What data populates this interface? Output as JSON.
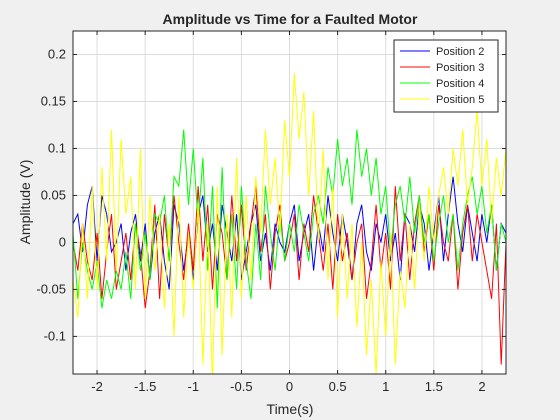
{
  "chart_data": {
    "type": "line",
    "title": "Amplitude vs Time for a Faulted Motor",
    "xlabel": "Time(s)",
    "ylabel": "Amplitude (V)",
    "xlim": [
      -2.25,
      2.25
    ],
    "ylim": [
      -0.14,
      0.225
    ],
    "xticks": [
      -2,
      -1.5,
      -1,
      -0.5,
      0,
      0.5,
      1,
      1.5,
      2
    ],
    "xtick_labels": [
      "-2",
      "-1.5",
      "-1",
      "-0.5",
      "0",
      "0.5",
      "1",
      "1.5",
      "2"
    ],
    "yticks": [
      -0.1,
      -0.05,
      0,
      0.05,
      0.1,
      0.15,
      0.2
    ],
    "ytick_labels": [
      "-0.1",
      "-0.05",
      "0",
      "0.05",
      "0.1",
      "0.15",
      "0.2"
    ],
    "grid": true,
    "legend_position": "top-right",
    "x": [
      -2.25,
      -2.2,
      -2.15,
      -2.1,
      -2.05,
      -2.0,
      -1.95,
      -1.9,
      -1.85,
      -1.8,
      -1.75,
      -1.7,
      -1.65,
      -1.6,
      -1.55,
      -1.5,
      -1.45,
      -1.4,
      -1.35,
      -1.3,
      -1.25,
      -1.2,
      -1.15,
      -1.1,
      -1.05,
      -1.0,
      -0.95,
      -0.9,
      -0.85,
      -0.8,
      -0.75,
      -0.7,
      -0.65,
      -0.6,
      -0.55,
      -0.5,
      -0.45,
      -0.4,
      -0.35,
      -0.3,
      -0.25,
      -0.2,
      -0.15,
      -0.1,
      -0.05,
      0.0,
      0.05,
      0.1,
      0.15,
      0.2,
      0.25,
      0.3,
      0.35,
      0.4,
      0.45,
      0.5,
      0.55,
      0.6,
      0.65,
      0.7,
      0.75,
      0.8,
      0.85,
      0.9,
      0.95,
      1.0,
      1.05,
      1.1,
      1.15,
      1.2,
      1.25,
      1.3,
      1.35,
      1.4,
      1.45,
      1.5,
      1.55,
      1.6,
      1.65,
      1.7,
      1.75,
      1.8,
      1.85,
      1.9,
      1.95,
      2.0,
      2.05,
      2.1,
      2.15,
      2.2,
      2.25
    ],
    "series": [
      {
        "name": "Position 2",
        "color": "#0000ff",
        "values": [
          0.02,
          0.03,
          -0.01,
          0.04,
          0.06,
          -0.02,
          0.05,
          0.03,
          -0.01,
          0.0,
          0.02,
          -0.03,
          0.01,
          0.03,
          -0.02,
          0.02,
          -0.04,
          0.01,
          0.03,
          -0.02,
          -0.05,
          0.04,
          0.02,
          -0.03,
          0.01,
          -0.04,
          0.03,
          0.05,
          -0.01,
          0.02,
          -0.03,
          0.04,
          0.01,
          -0.02,
          0.03,
          -0.04,
          -0.01,
          0.02,
          0.04,
          -0.02,
          0.01,
          -0.03,
          0.02,
          0.0,
          -0.01,
          0.02,
          0.04,
          -0.02,
          0.01,
          0.03,
          -0.03,
          0.02,
          -0.01,
          0.05,
          0.01,
          -0.02,
          0.03,
          0.0,
          -0.04,
          0.02,
          0.04,
          -0.01,
          -0.03,
          0.02,
          0.0,
          0.03,
          -0.02,
          0.01,
          -0.04,
          0.03,
          0.02,
          -0.01,
          0.04,
          0.02,
          -0.03,
          0.01,
          0.05,
          -0.02,
          0.03,
          0.07,
          0.02,
          -0.01,
          0.04,
          0.01,
          -0.02,
          0.03,
          0.0,
          0.04,
          -0.03,
          0.02,
          0.01
        ]
      },
      {
        "name": "Position 3",
        "color": "#ff0000",
        "values": [
          0.0,
          -0.03,
          0.02,
          -0.02,
          -0.04,
          0.01,
          -0.06,
          -0.01,
          0.03,
          -0.05,
          -0.02,
          0.01,
          -0.04,
          0.02,
          -0.01,
          -0.07,
          -0.03,
          0.04,
          -0.06,
          0.03,
          -0.02,
          0.05,
          0.0,
          -0.04,
          0.02,
          -0.03,
          0.06,
          -0.02,
          0.04,
          -0.05,
          0.03,
          0.01,
          -0.04,
          0.05,
          -0.02,
          0.04,
          -0.03,
          0.02,
          0.06,
          -0.01,
          0.03,
          -0.05,
          0.01,
          0.04,
          -0.02,
          0.0,
          0.03,
          -0.04,
          0.02,
          -0.01,
          0.05,
          0.01,
          -0.03,
          0.02,
          -0.05,
          0.03,
          -0.02,
          0.01,
          -0.04,
          0.0,
          0.02,
          -0.06,
          -0.02,
          0.04,
          -0.03,
          0.01,
          -0.05,
          0.06,
          -0.02,
          0.03,
          -0.04,
          0.02,
          0.05,
          -0.01,
          0.03,
          -0.03,
          0.04,
          0.0,
          -0.02,
          0.03,
          -0.05,
          0.01,
          0.04,
          -0.02,
          0.03,
          0.0,
          -0.03,
          -0.06,
          0.02,
          -0.13,
          0.0
        ]
      },
      {
        "name": "Position 4",
        "color": "#00ff00",
        "values": [
          0.01,
          -0.06,
          0.0,
          -0.03,
          -0.05,
          -0.02,
          -0.07,
          -0.04,
          -0.06,
          -0.03,
          -0.05,
          -0.01,
          -0.06,
          0.02,
          -0.03,
          0.01,
          -0.04,
          0.03,
          0.02,
          0.05,
          -0.02,
          0.07,
          0.06,
          0.12,
          0.04,
          0.1,
          0.02,
          0.09,
          -0.03,
          0.06,
          -0.07,
          0.08,
          -0.04,
          0.03,
          -0.05,
          0.06,
          -0.02,
          -0.06,
          0.02,
          -0.04,
          0.06,
          0.01,
          -0.03,
          0.03,
          -0.02,
          0.02,
          -0.01,
          0.04,
          0.01,
          -0.02,
          0.03,
          0.05,
          0.02,
          0.08,
          0.05,
          0.11,
          0.06,
          0.09,
          0.04,
          0.12,
          0.07,
          0.1,
          0.05,
          0.09,
          0.03,
          0.06,
          -0.01,
          0.04,
          0.06,
          0.02,
          0.07,
          0.01,
          0.05,
          0.0,
          0.03,
          -0.02,
          0.02,
          0.05,
          0.0,
          0.03,
          -0.03,
          0.02,
          0.05,
          0.07,
          0.03,
          0.06,
          0.01,
          0.04,
          -0.03,
          0.02,
          0.0
        ]
      },
      {
        "name": "Position 5",
        "color": "#ffff00",
        "values": [
          -0.04,
          -0.08,
          0.02,
          -0.06,
          0.06,
          -0.05,
          0.08,
          -0.02,
          0.12,
          -0.03,
          0.11,
          0.03,
          0.07,
          -0.05,
          0.1,
          -0.06,
          0.05,
          -0.03,
          0.03,
          -0.07,
          0.02,
          -0.1,
          0.05,
          -0.08,
          0.01,
          -0.05,
          0.04,
          -0.13,
          0.02,
          -0.15,
          0.06,
          -0.12,
          0.03,
          -0.08,
          0.09,
          -0.06,
          0.05,
          -0.04,
          0.07,
          0.01,
          0.12,
          0.04,
          0.09,
          0.01,
          0.13,
          0.07,
          0.18,
          0.11,
          0.16,
          0.05,
          0.14,
          0.0,
          0.1,
          -0.04,
          0.06,
          -0.08,
          0.03,
          -0.06,
          0.02,
          -0.09,
          0.0,
          -0.12,
          -0.04,
          -0.14,
          -0.02,
          -0.1,
          0.01,
          -0.13,
          -0.03,
          -0.07,
          0.02,
          -0.05,
          0.04,
          -0.02,
          0.06,
          0.0,
          0.05,
          0.08,
          0.03,
          0.1,
          0.06,
          0.12,
          0.04,
          0.08,
          0.14,
          0.06,
          0.11,
          0.02,
          0.09,
          0.05,
          0.1
        ]
      }
    ]
  }
}
